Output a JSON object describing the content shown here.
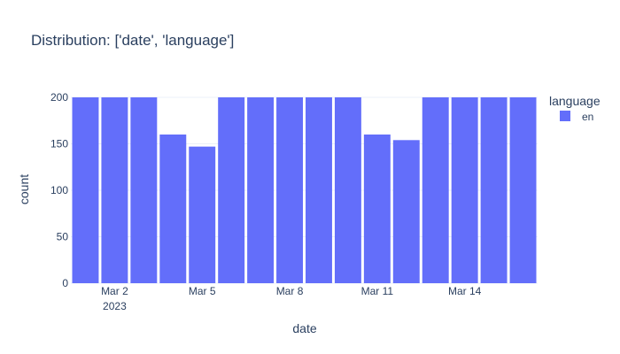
{
  "chart_data": {
    "type": "bar",
    "title": "Distribution: ['date', 'language']",
    "xlabel": "date",
    "ylabel": "count",
    "ylim": [
      0,
      200
    ],
    "yticks": [
      "0",
      "50",
      "100",
      "150",
      "200"
    ],
    "x_tick_labels": [
      {
        "date": "2023-03-02",
        "label": "Mar 2",
        "sublabel": "2023"
      },
      {
        "date": "2023-03-05",
        "label": "Mar 5",
        "sublabel": ""
      },
      {
        "date": "2023-03-08",
        "label": "Mar 8",
        "sublabel": ""
      },
      {
        "date": "2023-03-11",
        "label": "Mar 11",
        "sublabel": ""
      },
      {
        "date": "2023-03-14",
        "label": "Mar 14",
        "sublabel": ""
      }
    ],
    "x": [
      "2023-03-01",
      "2023-03-02",
      "2023-03-03",
      "2023-03-04",
      "2023-03-05",
      "2023-03-06",
      "2023-03-07",
      "2023-03-08",
      "2023-03-09",
      "2023-03-10",
      "2023-03-11",
      "2023-03-12",
      "2023-03-13",
      "2023-03-14",
      "2023-03-15",
      "2023-03-16"
    ],
    "series": [
      {
        "name": "en",
        "color": "#636efa",
        "values": [
          200,
          200,
          200,
          160,
          147,
          200,
          200,
          200,
          200,
          200,
          160,
          154,
          200,
          200,
          200,
          200
        ]
      }
    ],
    "legend": {
      "title": "language",
      "placement": "top-right"
    },
    "grid": true
  }
}
